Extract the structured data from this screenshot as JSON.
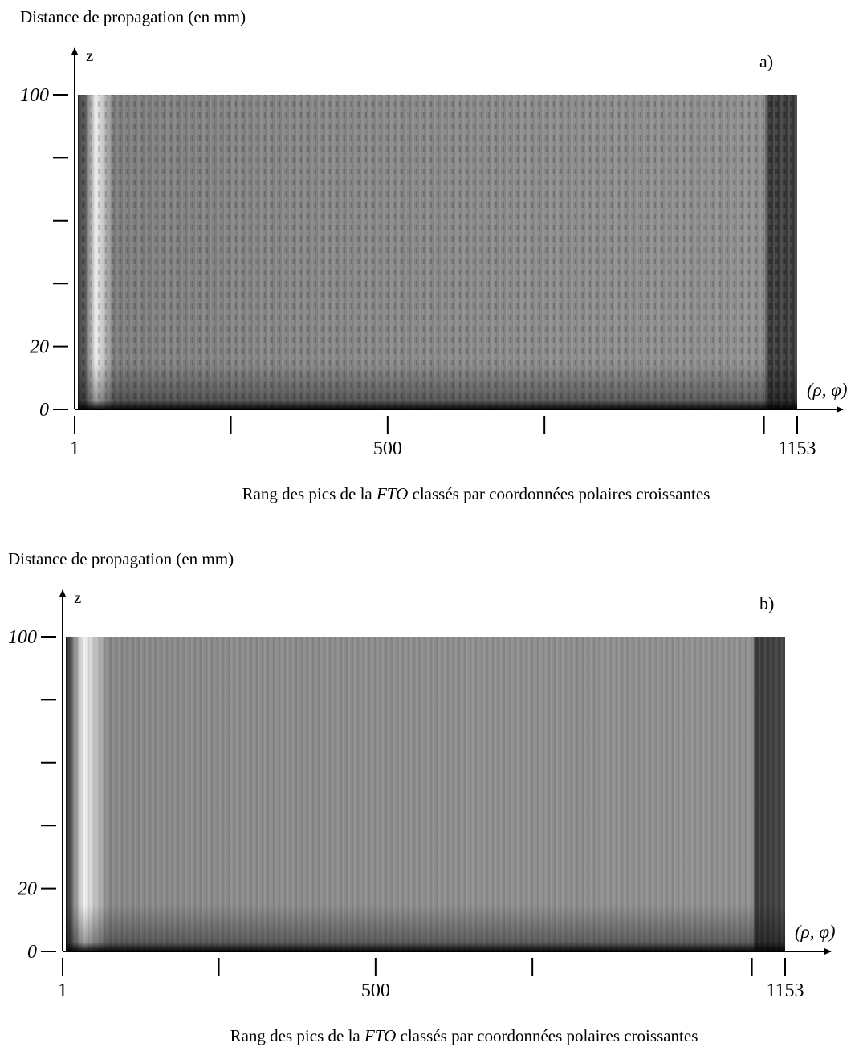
{
  "chart_data": [
    {
      "type": "heatmap",
      "y_label": "Distance de propagation (en mm)",
      "y_axis_name": "z",
      "x_axis_name": "(ρ, φ)",
      "panel_label": "a)",
      "x_label": [
        "Rang des pics de la ",
        "FTO",
        " classés par coordonnées polaires croissantes"
      ],
      "xlim": [
        1,
        1153
      ],
      "ylim": [
        0,
        100
      ],
      "xticks": [
        1,
        {
          "value": 250,
          "label": null
        },
        500,
        {
          "value": 750,
          "label": null
        },
        {
          "value": 1100,
          "label": null
        },
        1153
      ],
      "yticks": [
        0,
        20,
        {
          "value": 40,
          "label": null
        },
        {
          "value": 60,
          "label": null
        },
        {
          "value": 80,
          "label": null
        },
        100
      ]
    },
    {
      "type": "heatmap",
      "y_label": "Distance de propagation (en mm)",
      "y_axis_name": "z",
      "x_axis_name": "(ρ, φ)",
      "panel_label": "b)",
      "x_label": [
        "Rang des pics de la ",
        "FTO",
        " classés par coordonnées polaires croissantes"
      ],
      "xlim": [
        1,
        1153
      ],
      "ylim": [
        0,
        100
      ],
      "xticks": [
        1,
        {
          "value": 250,
          "label": null
        },
        500,
        {
          "value": 750,
          "label": null
        },
        {
          "value": 1100,
          "label": null
        },
        1153
      ],
      "yticks": [
        0,
        20,
        {
          "value": 40,
          "label": null
        },
        {
          "value": 60,
          "label": null
        },
        {
          "value": 80,
          "label": null
        },
        100
      ]
    }
  ]
}
